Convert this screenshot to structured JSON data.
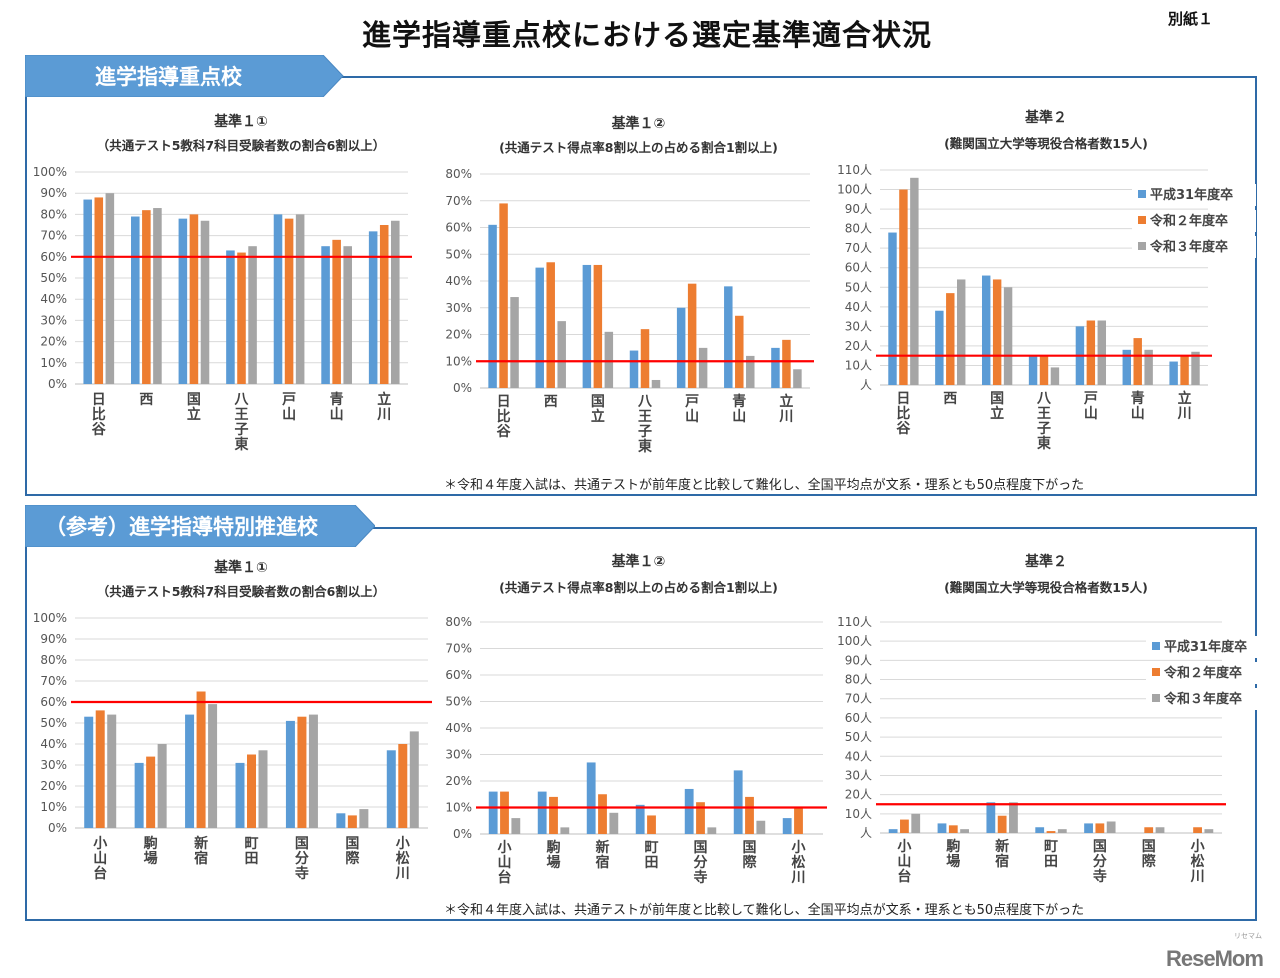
{
  "page": {
    "title": "進学指導重点校における選定基準適合状況",
    "appendix_label": "別紙１",
    "logo": "ReseMom",
    "logo_tag": "リセマム"
  },
  "colors": {
    "series": [
      "#5b9bd5",
      "#ed7d31",
      "#a5a5a5"
    ],
    "threshold": "#ff0000",
    "banner": "#5b9bd5",
    "border": "#2e6aa7",
    "grid": "#d9d9d9"
  },
  "sections": [
    {
      "banner": "進学指導重点校",
      "note": "＊令和４年度入試は、共通テストが前年度と比較して難化し、全国平均点が文系・理系とも50点程度下がった"
    },
    {
      "banner": "（参考）進学指導特別推進校",
      "note": "＊令和４年度入試は、共通テストが前年度と比較して難化し、全国平均点が文系・理系とも50点程度下がった"
    }
  ],
  "legend": [
    "平成31年度卒",
    "令和２年度卒",
    "令和３年度卒"
  ],
  "chart_data": [
    {
      "id": "s1c1",
      "type": "bar",
      "title": "基準１①",
      "subtitle": "（共通テスト5教科7科目受験者数の割合6割以上）",
      "categories": [
        "日比谷",
        "西",
        "国立",
        "八王子東",
        "戸山",
        "青山",
        "立川"
      ],
      "series": [
        {
          "name": "平成31年度卒",
          "values": [
            87,
            79,
            78,
            63,
            80,
            65,
            72
          ]
        },
        {
          "name": "令和２年度卒",
          "values": [
            88,
            82,
            80,
            62,
            78,
            68,
            75
          ]
        },
        {
          "name": "令和３年度卒",
          "values": [
            90,
            83,
            77,
            65,
            80,
            65,
            77
          ]
        }
      ],
      "threshold": 60,
      "ylim": [
        0,
        100
      ],
      "yticks": [
        0,
        10,
        20,
        30,
        40,
        50,
        60,
        70,
        80,
        90,
        100
      ],
      "ytick_labels": [
        "0%",
        "10%",
        "20%",
        "30%",
        "40%",
        "50%",
        "60%",
        "70%",
        "80%",
        "90%",
        "100%"
      ],
      "grid": true,
      "legend": "none"
    },
    {
      "id": "s1c2",
      "type": "bar",
      "title": "基準１②",
      "subtitle": "(共通テスト得点率8割以上の占める割合1割以上)",
      "categories": [
        "日比谷",
        "西",
        "国立",
        "八王子東",
        "戸山",
        "青山",
        "立川"
      ],
      "series": [
        {
          "name": "平成31年度卒",
          "values": [
            61,
            45,
            46,
            14,
            30,
            38,
            15
          ]
        },
        {
          "name": "令和２年度卒",
          "values": [
            69,
            47,
            46,
            22,
            39,
            27,
            18
          ]
        },
        {
          "name": "令和３年度卒",
          "values": [
            34,
            25,
            21,
            3,
            15,
            12,
            7
          ]
        }
      ],
      "threshold": 10,
      "ylim": [
        0,
        80
      ],
      "yticks": [
        0,
        10,
        20,
        30,
        40,
        50,
        60,
        70,
        80
      ],
      "ytick_labels": [
        "0%",
        "10%",
        "20%",
        "30%",
        "40%",
        "50%",
        "60%",
        "70%",
        "80%"
      ],
      "grid": true,
      "legend": "none"
    },
    {
      "id": "s1c3",
      "type": "bar",
      "title": "基準２",
      "subtitle": "(難関国立大学等現役合格者数15人)",
      "categories": [
        "日比谷",
        "西",
        "国立",
        "八王子東",
        "戸山",
        "青山",
        "立川"
      ],
      "series": [
        {
          "name": "平成31年度卒",
          "values": [
            78,
            38,
            56,
            15,
            30,
            18,
            12
          ]
        },
        {
          "name": "令和２年度卒",
          "values": [
            100,
            47,
            54,
            15,
            33,
            24,
            15
          ]
        },
        {
          "name": "令和３年度卒",
          "values": [
            106,
            54,
            50,
            9,
            33,
            18,
            17
          ]
        }
      ],
      "threshold": 15,
      "ylim": [
        0,
        110
      ],
      "yticks": [
        0,
        10,
        20,
        30,
        40,
        50,
        60,
        70,
        80,
        90,
        100,
        110
      ],
      "ytick_labels": [
        "人",
        "10人",
        "20人",
        "30人",
        "40人",
        "50人",
        "60人",
        "70人",
        "80人",
        "90人",
        "100人",
        "110人"
      ],
      "grid": true,
      "legend": "right"
    },
    {
      "id": "s2c1",
      "type": "bar",
      "title": "基準１①",
      "subtitle": "（共通テスト5教科7科目受験者数の割合6割以上）",
      "categories": [
        "小山台",
        "駒場",
        "新宿",
        "町田",
        "国分寺",
        "国際",
        "小松川"
      ],
      "series": [
        {
          "name": "平成31年度卒",
          "values": [
            53,
            31,
            54,
            31,
            51,
            7,
            37
          ]
        },
        {
          "name": "令和２年度卒",
          "values": [
            56,
            34,
            65,
            35,
            53,
            6,
            40
          ]
        },
        {
          "name": "令和３年度卒",
          "values": [
            54,
            40,
            59,
            37,
            54,
            9,
            46
          ]
        }
      ],
      "threshold": 60,
      "ylim": [
        0,
        100
      ],
      "yticks": [
        0,
        10,
        20,
        30,
        40,
        50,
        60,
        70,
        80,
        90,
        100
      ],
      "ytick_labels": [
        "0%",
        "10%",
        "20%",
        "30%",
        "40%",
        "50%",
        "60%",
        "70%",
        "80%",
        "90%",
        "100%"
      ],
      "grid": true,
      "legend": "none"
    },
    {
      "id": "s2c2",
      "type": "bar",
      "title": "基準１②",
      "subtitle": "(共通テスト得点率8割以上の占める割合1割以上)",
      "categories": [
        "小山台",
        "駒場",
        "新宿",
        "町田",
        "国分寺",
        "国際",
        "小松川"
      ],
      "series": [
        {
          "name": "平成31年度卒",
          "values": [
            16,
            16,
            27,
            11,
            17,
            24,
            6
          ]
        },
        {
          "name": "令和２年度卒",
          "values": [
            16,
            14,
            15,
            7,
            12,
            14,
            10
          ]
        },
        {
          "name": "令和３年度卒",
          "values": [
            6,
            2.5,
            8,
            0,
            2.5,
            5,
            0
          ]
        }
      ],
      "threshold": 10,
      "ylim": [
        0,
        80
      ],
      "yticks": [
        0,
        10,
        20,
        30,
        40,
        50,
        60,
        70,
        80
      ],
      "ytick_labels": [
        "0%",
        "10%",
        "20%",
        "30%",
        "40%",
        "50%",
        "60%",
        "70%",
        "80%"
      ],
      "grid": true,
      "legend": "none"
    },
    {
      "id": "s2c3",
      "type": "bar",
      "title": "基準２",
      "subtitle": "(難関国立大学等現役合格者数15人)",
      "categories": [
        "小山台",
        "駒場",
        "新宿",
        "町田",
        "国分寺",
        "国際",
        "小松川"
      ],
      "series": [
        {
          "name": "平成31年度卒",
          "values": [
            2,
            5,
            16,
            3,
            5,
            0,
            0
          ]
        },
        {
          "name": "令和２年度卒",
          "values": [
            7,
            4,
            9,
            1,
            5,
            3,
            3
          ]
        },
        {
          "name": "令和３年度卒",
          "values": [
            10,
            2,
            16,
            2,
            6,
            3,
            2
          ]
        }
      ],
      "threshold": 15,
      "ylim": [
        0,
        110
      ],
      "yticks": [
        0,
        10,
        20,
        30,
        40,
        50,
        60,
        70,
        80,
        90,
        100,
        110
      ],
      "ytick_labels": [
        "人",
        "10人",
        "20人",
        "30人",
        "40人",
        "50人",
        "60人",
        "70人",
        "80人",
        "90人",
        "100人",
        "110人"
      ],
      "grid": true,
      "legend": "right"
    }
  ]
}
